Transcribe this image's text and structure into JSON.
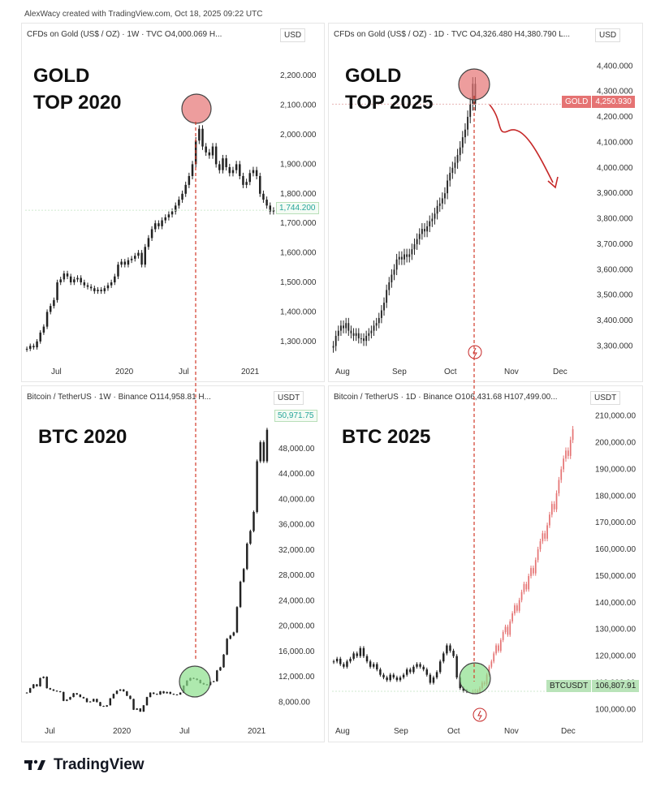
{
  "header": {
    "text": "AlexWacy created with TradingView.com, Oct 18, 2025 09:22 UTC"
  },
  "footer": {
    "brand": "TradingView"
  },
  "colors": {
    "up": "#26a69a",
    "down": "#222222",
    "projection": "#e57373",
    "vline": "#d23a2a",
    "top_circle": "#e57373",
    "bottom_circle": "#8be08b"
  },
  "panels": {
    "gold2020": {
      "title": "CFDs on Gold (US$ / OZ) · 1W · TVC  O4,000.069  H...",
      "unit": "USD",
      "label": "GOLD\nTOP 2020",
      "price_label": "1,744.200"
    },
    "gold2025": {
      "title": "CFDs on Gold (US$ / OZ) · 1D · TVC  O4,326.480  H4,380.790  L...",
      "unit": "USD",
      "label": "GOLD\nTOP 2025",
      "tag_name": "GOLD",
      "tag_value": "4,250.930"
    },
    "btc2020": {
      "title": "Bitcoin / TetherUS · 1W · Binance  O114,958.81  H...",
      "unit": "USDT",
      "label": "BTC 2020",
      "price_label": "50,971.75"
    },
    "btc2025": {
      "title": "Bitcoin / TetherUS · 1D · Binance  O106,431.68  H107,499.00...",
      "unit": "USDT",
      "label": "BTC 2025",
      "tag_name": "BTCUSDT",
      "tag_value": "106,807.91"
    }
  },
  "chart_data": [
    {
      "id": "gold2020",
      "type": "candlestick",
      "ylim": [
        1250,
        2250
      ],
      "yticks": [
        "1,300.000",
        "1,400.000",
        "1,500.000",
        "1,600.000",
        "1,700.000",
        "1,800.000",
        "1,900.000",
        "2,000.000",
        "2,100.000",
        "2,200.000"
      ],
      "xticks": [
        "Jul",
        "2020",
        "Jul",
        "2021"
      ],
      "close": [
        1275,
        1285,
        1280,
        1300,
        1330,
        1350,
        1400,
        1420,
        1440,
        1500,
        1510,
        1530,
        1520,
        1500,
        1510,
        1515,
        1500,
        1490,
        1485,
        1480,
        1470,
        1475,
        1470,
        1480,
        1490,
        1500,
        1520,
        1560,
        1570,
        1560,
        1575,
        1580,
        1590,
        1600,
        1560,
        1620,
        1650,
        1680,
        1700,
        1690,
        1710,
        1720,
        1730,
        1740,
        1760,
        1780,
        1800,
        1830,
        1860,
        1900,
        1980,
        2020,
        1960,
        1940,
        1930,
        1960,
        1900,
        1880,
        1920,
        1890,
        1870,
        1880,
        1900,
        1860,
        1830,
        1840,
        1870,
        1880,
        1860,
        1800,
        1780,
        1760,
        1740,
        1744
      ]
    },
    {
      "id": "gold2025",
      "type": "candlestick",
      "ylim": [
        3260,
        4420
      ],
      "yticks": [
        "3,300.000",
        "3,400.000",
        "3,500.000",
        "3,600.000",
        "3,700.000",
        "3,800.000",
        "3,900.000",
        "4,000.000",
        "4,100.000",
        "4,200.000",
        "4,300.000",
        "4,400.000"
      ],
      "xticks": [
        "Aug",
        "Sep",
        "Oct",
        "Nov",
        "Dec"
      ],
      "close": [
        3300,
        3340,
        3360,
        3380,
        3370,
        3390,
        3360,
        3350,
        3340,
        3350,
        3330,
        3330,
        3320,
        3340,
        3350,
        3360,
        3380,
        3390,
        3410,
        3440,
        3470,
        3520,
        3550,
        3580,
        3600,
        3640,
        3650,
        3640,
        3660,
        3650,
        3660,
        3680,
        3700,
        3720,
        3740,
        3760,
        3750,
        3770,
        3790,
        3800,
        3820,
        3850,
        3860,
        3880,
        3900,
        3950,
        3980,
        4000,
        4020,
        4050,
        4080,
        4120,
        4150,
        4200,
        4250,
        4330,
        4250
      ]
    },
    {
      "id": "btc2020",
      "type": "candlestick",
      "ylim": [
        6000,
        54000
      ],
      "yticks": [
        "8,000.00",
        "12,000.00",
        "16,000.00",
        "20,000.00",
        "24,000.00",
        "28,000.00",
        "32,000.00",
        "36,000.00",
        "40,000.00",
        "44,000.00",
        "48,000.00"
      ],
      "xticks": [
        "Jul",
        "2020",
        "Jul",
        "2021"
      ],
      "close": [
        9500,
        10200,
        10800,
        10500,
        11800,
        12000,
        10200,
        10000,
        9800,
        9700,
        9600,
        8200,
        8400,
        8800,
        9400,
        9200,
        8800,
        8600,
        8000,
        8100,
        8500,
        8000,
        7400,
        7300,
        7500,
        8600,
        9300,
        9800,
        10000,
        9700,
        9000,
        8500,
        6800,
        7000,
        6500,
        7500,
        8800,
        9500,
        9300,
        9200,
        9700,
        9400,
        9600,
        9300,
        9200,
        9200,
        9500,
        10600,
        11400,
        11800,
        11700,
        11500,
        11000,
        10800,
        10700,
        11200,
        11300,
        13000,
        13500,
        15500,
        18000,
        18500,
        19000,
        23000,
        27000,
        29000,
        33000,
        35000,
        38000,
        46000,
        49000,
        46000,
        50971
      ]
    },
    {
      "id": "btc2025",
      "type": "candlestick",
      "ylim": [
        98000,
        212000
      ],
      "yticks": [
        "100,000.00",
        "110,000.00",
        "120,000.00",
        "130,000.00",
        "140,000.00",
        "150,000.00",
        "160,000.00",
        "170,000.00",
        "180,000.00",
        "190,000.00",
        "200,000.00",
        "210,000.00"
      ],
      "xticks": [
        "Aug",
        "Sep",
        "Oct",
        "Nov",
        "Dec"
      ],
      "close": [
        118000,
        119000,
        117000,
        116000,
        118000,
        119000,
        121000,
        120000,
        123000,
        120000,
        118000,
        116000,
        117000,
        115000,
        113000,
        112000,
        111000,
        113000,
        112000,
        111000,
        112000,
        113000,
        115000,
        114000,
        116000,
        117000,
        116000,
        115000,
        113000,
        110000,
        112000,
        114000,
        118000,
        121000,
        124000,
        122000,
        120000,
        112000,
        108000,
        107000,
        106807
      ],
      "projection": [
        106807,
        107000,
        106500,
        108000,
        110000,
        109500,
        113000,
        116000,
        118000,
        121000,
        124000,
        122000,
        126000,
        129000,
        131000,
        128000,
        133000,
        136000,
        139000,
        137000,
        141000,
        144000,
        147000,
        145000,
        150000,
        153000,
        151000,
        156000,
        160000,
        163000,
        166000,
        164000,
        169000,
        173000,
        177000,
        175000,
        181000,
        186000,
        190000,
        194000,
        197000,
        195000,
        201000,
        205000
      ]
    }
  ]
}
